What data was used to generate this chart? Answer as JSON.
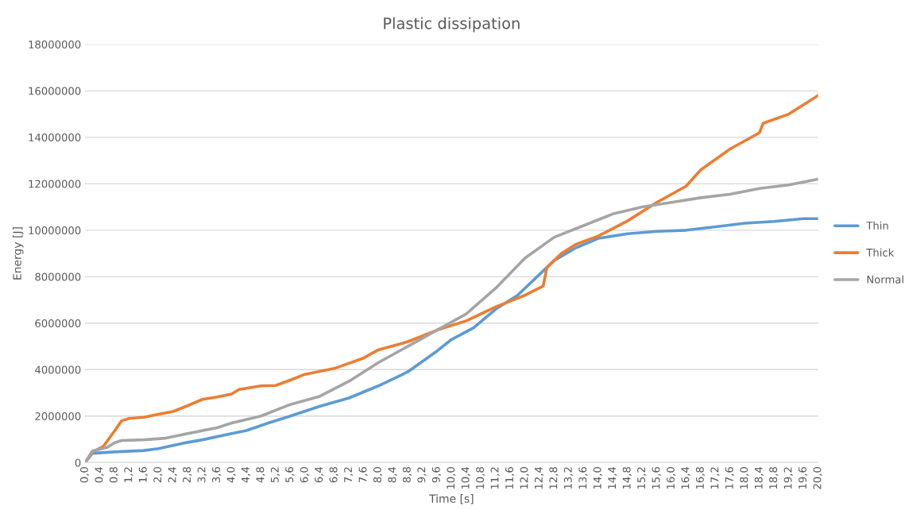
{
  "chart_data": {
    "type": "line",
    "title": "Plastic dissipation",
    "xlabel": "Time [s]",
    "ylabel": "Energy [J]",
    "xlim": [
      0,
      20
    ],
    "xticks": [
      {
        "value": 0,
        "label": "0,0"
      },
      {
        "value": 0.4,
        "label": "0,4"
      },
      {
        "value": 0.8,
        "label": "0,8"
      },
      {
        "value": 1.2,
        "label": "1,2"
      },
      {
        "value": 1.6,
        "label": "1,6"
      },
      {
        "value": 2.0,
        "label": "2,0"
      },
      {
        "value": 2.4,
        "label": "2,4"
      },
      {
        "value": 2.8,
        "label": "2,8"
      },
      {
        "value": 3.2,
        "label": "3,2"
      },
      {
        "value": 3.6,
        "label": "3,6"
      },
      {
        "value": 4.0,
        "label": "4,0"
      },
      {
        "value": 4.4,
        "label": "4,4"
      },
      {
        "value": 4.8,
        "label": "4,8"
      },
      {
        "value": 5.2,
        "label": "5,2"
      },
      {
        "value": 5.6,
        "label": "5,6"
      },
      {
        "value": 6.0,
        "label": "6,0"
      },
      {
        "value": 6.4,
        "label": "6,4"
      },
      {
        "value": 6.8,
        "label": "6,8"
      },
      {
        "value": 7.2,
        "label": "7,2"
      },
      {
        "value": 7.6,
        "label": "7,6"
      },
      {
        "value": 8.0,
        "label": "8,0"
      },
      {
        "value": 8.4,
        "label": "8,4"
      },
      {
        "value": 8.8,
        "label": "8,8"
      },
      {
        "value": 9.2,
        "label": "9,2"
      },
      {
        "value": 9.6,
        "label": "9,6"
      },
      {
        "value": 10.0,
        "label": "10,0"
      },
      {
        "value": 10.4,
        "label": "10,4"
      },
      {
        "value": 10.8,
        "label": "10,8"
      },
      {
        "value": 11.2,
        "label": "11,2"
      },
      {
        "value": 11.6,
        "label": "11,6"
      },
      {
        "value": 12.0,
        "label": "12,0"
      },
      {
        "value": 12.4,
        "label": "12,4"
      },
      {
        "value": 12.8,
        "label": "12,8"
      },
      {
        "value": 13.2,
        "label": "13,2"
      },
      {
        "value": 13.6,
        "label": "13,6"
      },
      {
        "value": 14.0,
        "label": "14,0"
      },
      {
        "value": 14.4,
        "label": "14,4"
      },
      {
        "value": 14.8,
        "label": "14,8"
      },
      {
        "value": 15.2,
        "label": "15,2"
      },
      {
        "value": 15.6,
        "label": "15,6"
      },
      {
        "value": 16.0,
        "label": "16,0"
      },
      {
        "value": 16.4,
        "label": "16,4"
      },
      {
        "value": 16.8,
        "label": "16,8"
      },
      {
        "value": 17.2,
        "label": "17,2"
      },
      {
        "value": 17.6,
        "label": "17,6"
      },
      {
        "value": 18.0,
        "label": "18,0"
      },
      {
        "value": 18.4,
        "label": "18,4"
      },
      {
        "value": 18.8,
        "label": "18,8"
      },
      {
        "value": 19.2,
        "label": "19,2"
      },
      {
        "value": 19.6,
        "label": "19,6"
      },
      {
        "value": 20.0,
        "label": "20,0"
      }
    ],
    "ylim": [
      0,
      18000000
    ],
    "yticks": [
      0,
      2000000,
      4000000,
      6000000,
      8000000,
      10000000,
      12000000,
      14000000,
      16000000,
      18000000
    ],
    "grid": "y",
    "legend": "right",
    "marker": "none",
    "line_style": "solid",
    "series": [
      {
        "name": "Thin",
        "color": "#5b9bd5",
        "x": [
          0,
          0.2,
          0.8,
          1.6,
          2.0,
          2.8,
          3.2,
          4.0,
          4.4,
          5.0,
          5.6,
          6.4,
          7.2,
          8.0,
          8.8,
          9.6,
          10.0,
          10.6,
          11.2,
          11.8,
          12.4,
          12.8,
          13.4,
          14.0,
          14.8,
          15.6,
          16.4,
          17.2,
          18.0,
          18.8,
          19.6,
          20
        ],
        "values": [
          0,
          400000,
          460000,
          520000,
          600000,
          870000,
          980000,
          1250000,
          1380000,
          1700000,
          2000000,
          2420000,
          2780000,
          3300000,
          3900000,
          4800000,
          5300000,
          5800000,
          6600000,
          7200000,
          8100000,
          8700000,
          9250000,
          9650000,
          9850000,
          9950000,
          10000000,
          10150000,
          10300000,
          10380000,
          10500000,
          10500000
        ]
      },
      {
        "name": "Thick",
        "color": "#ed7d31",
        "x": [
          0,
          0.2,
          0.5,
          0.8,
          1.0,
          1.2,
          1.6,
          2.0,
          2.4,
          2.8,
          3.2,
          3.6,
          4.0,
          4.2,
          4.8,
          5.2,
          5.6,
          6.0,
          6.8,
          7.6,
          8.0,
          8.8,
          9.6,
          10.4,
          11.2,
          12.0,
          12.5,
          12.6,
          13.0,
          13.4,
          14.0,
          14.8,
          15.6,
          16.4,
          16.8,
          17.6,
          18.4,
          18.5,
          19.2,
          20
        ],
        "values": [
          0,
          450000,
          700000,
          1350000,
          1800000,
          1900000,
          1950000,
          2080000,
          2200000,
          2450000,
          2720000,
          2820000,
          2950000,
          3150000,
          3300000,
          3320000,
          3550000,
          3800000,
          4050000,
          4500000,
          4850000,
          5200000,
          5700000,
          6100000,
          6700000,
          7200000,
          7600000,
          8400000,
          9000000,
          9400000,
          9750000,
          10400000,
          11200000,
          11900000,
          12600000,
          13500000,
          14200000,
          14600000,
          15000000,
          15800000
        ]
      },
      {
        "name": "Normal",
        "color": "#a5a5a5",
        "x": [
          0,
          0.2,
          0.6,
          0.8,
          1.0,
          1.6,
          2.2,
          2.8,
          3.6,
          4.0,
          4.8,
          5.6,
          6.4,
          7.2,
          8.0,
          8.8,
          9.6,
          10.4,
          11.2,
          12.0,
          12.8,
          13.6,
          14.4,
          15.2,
          16.0,
          16.8,
          17.6,
          18.4,
          19.2,
          20
        ],
        "values": [
          0,
          500000,
          650000,
          850000,
          950000,
          980000,
          1050000,
          1250000,
          1500000,
          1700000,
          2000000,
          2500000,
          2850000,
          3500000,
          4300000,
          5000000,
          5700000,
          6400000,
          7500000,
          8800000,
          9700000,
          10200000,
          10700000,
          11000000,
          11200000,
          11400000,
          11550000,
          11800000,
          11950000,
          12200000
        ]
      }
    ]
  }
}
